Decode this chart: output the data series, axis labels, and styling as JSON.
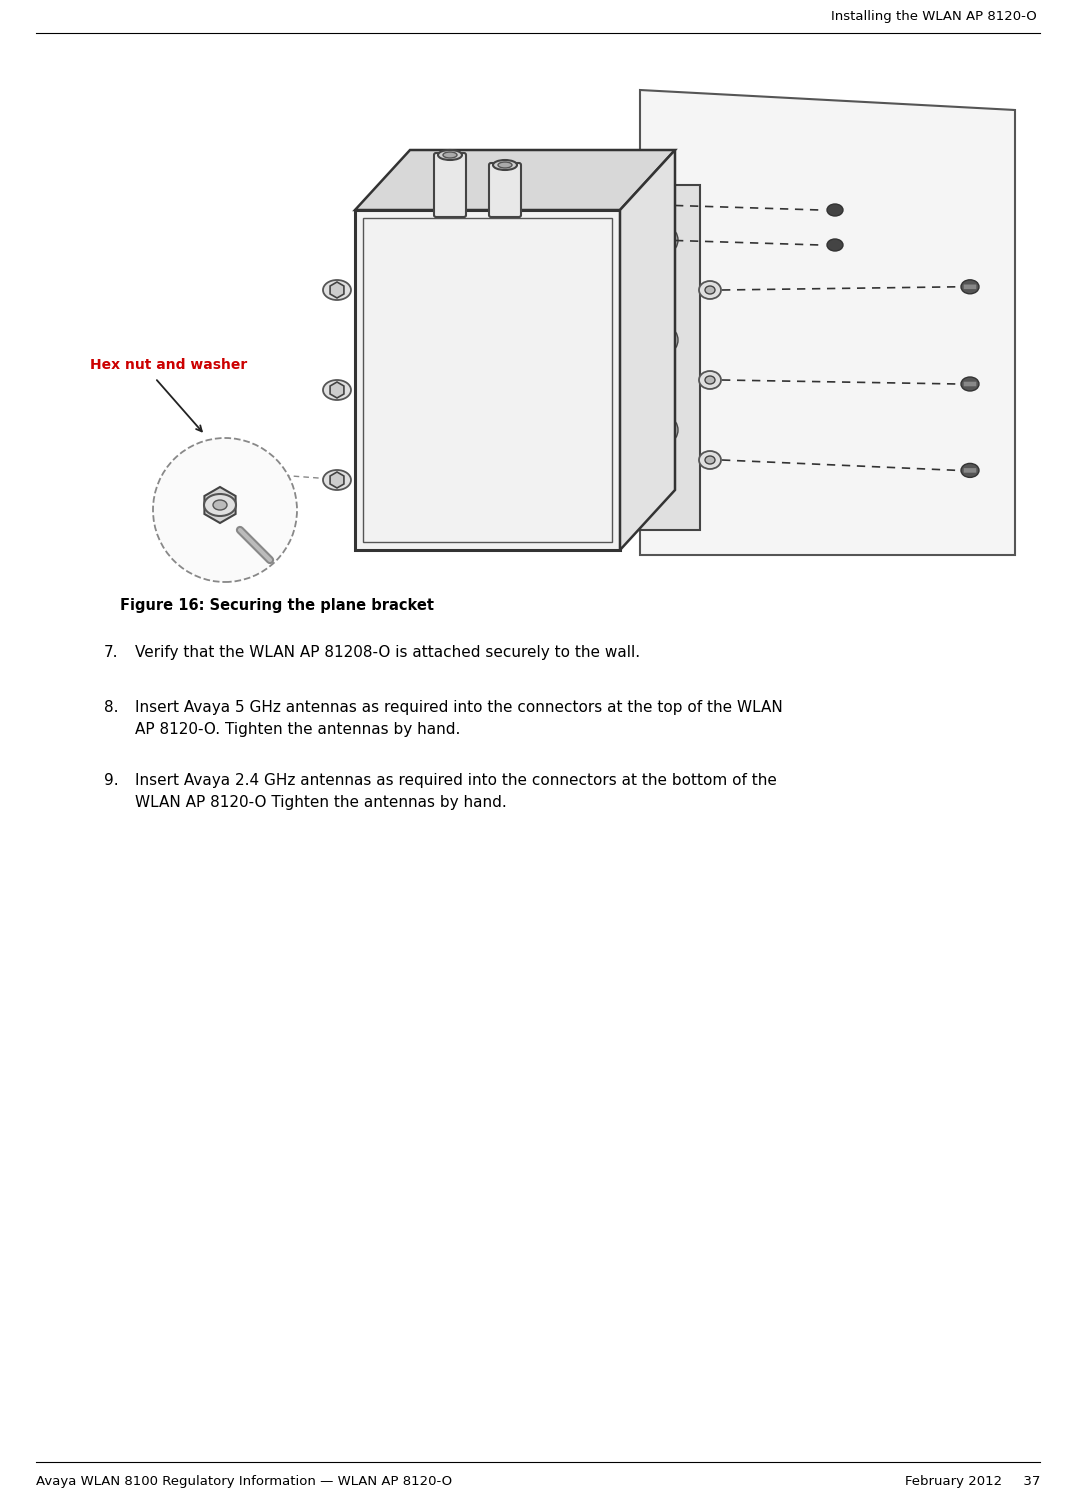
{
  "header_right": "Installing the WLAN AP 8120-O",
  "footer_left": "Avaya WLAN 8100 Regulatory Information — WLAN AP 8120-O",
  "footer_right": "February 2012     37",
  "figure_caption_bold": "Figure 16: Securing the plane bracket",
  "item7_num": "7.",
  "item7_text": "Verify that the WLAN AP 81208-O is attached securely to the wall.",
  "item8_num": "8.",
  "item8_line1": "Insert Avaya 5 GHz antennas as required into the connectors at the top of the WLAN",
  "item8_line2": "AP 8120-O. Tighten the antennas by hand.",
  "item9_num": "9.",
  "item9_line1": "Insert Avaya 2.4 GHz antennas as required into the connectors at the bottom of the",
  "item9_line2": "WLAN AP 8120-O Tighten the antennas by hand.",
  "label_hex": "Hex nut and washer",
  "label_hex_color": "#cc0000",
  "bg_color": "#ffffff",
  "text_color": "#000000",
  "line_color": "#333333",
  "fig_width": 10.73,
  "fig_height": 14.98,
  "dpi": 100
}
